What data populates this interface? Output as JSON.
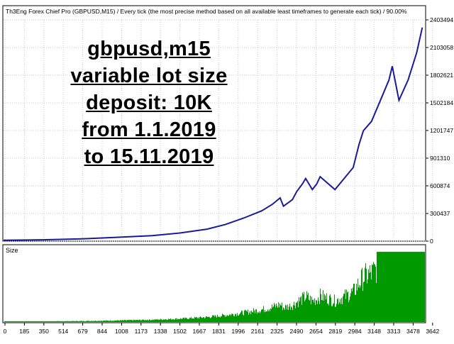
{
  "header": {
    "title": "Th3Eng Forex Chief Pro (GBPUSD,M15) / Every tick (the most precise method based on all available least timeframes to generate each tick) / 90.00%"
  },
  "overlay": {
    "lines": [
      "gbpusd,m15",
      "variable lot size",
      "deposit: 10K",
      "from 1.1.2019",
      "to 15.11.2019"
    ]
  },
  "size_panel": {
    "label": "Size"
  },
  "colors": {
    "balance_line": "#1a1a99",
    "size_bars": "#009900",
    "grid": "#c8c8c8",
    "axis": "#000000"
  },
  "chart_data": {
    "type": "line",
    "title": "Th3Eng Forex Chief Pro (GBPUSD,M15) / Every tick (the most precise method based on all available least timeframes to generate each tick) / 90.00%",
    "y_ticks": [
      "2403494",
      "2103058",
      "1802621",
      "1502184",
      "1201747",
      "901310",
      "600874",
      "300437",
      "0"
    ],
    "x_ticks": [
      "0",
      "185",
      "350",
      "514",
      "679",
      "844",
      "1008",
      "1173",
      "1338",
      "1502",
      "1667",
      "1831",
      "1996",
      "2161",
      "2325",
      "2490",
      "2654",
      "2819",
      "2984",
      "3148",
      "3313",
      "3478",
      "3642"
    ],
    "ylim": [
      0,
      2403494
    ],
    "xlim": [
      0,
      3800
    ],
    "grid": true,
    "series": [
      {
        "x": [
          0,
          350,
          700,
          1000,
          1338,
          1600,
          1831,
          1996,
          2161,
          2325,
          2420,
          2490,
          2520,
          2600,
          2640,
          2690,
          2720,
          2780,
          2819,
          2850,
          2984,
          3148,
          3200,
          3240,
          3313,
          3400,
          3470,
          3500,
          3560,
          3642,
          3720,
          3770
        ],
        "values": [
          10000,
          15000,
          25000,
          40000,
          60000,
          90000,
          130000,
          180000,
          250000,
          330000,
          400000,
          470000,
          380000,
          450000,
          540000,
          620000,
          680000,
          560000,
          620000,
          700000,
          560000,
          800000,
          1050000,
          1200000,
          1300000,
          1550000,
          1750000,
          1900000,
          1530000,
          1750000,
          2050000,
          2320000
        ]
      }
    ]
  }
}
